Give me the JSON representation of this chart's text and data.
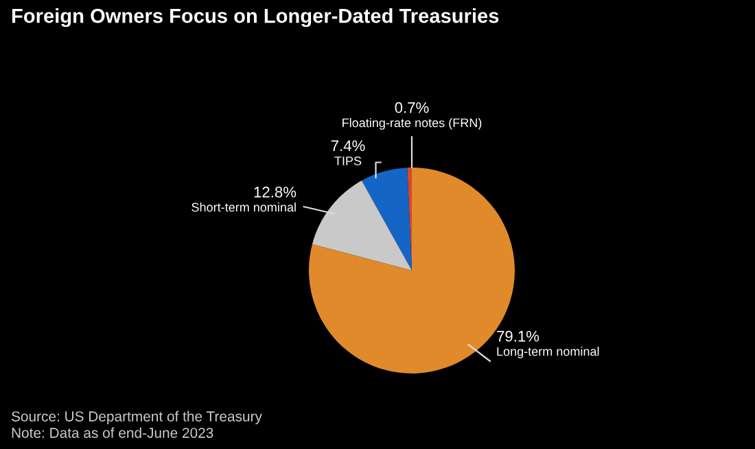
{
  "chart_data": {
    "type": "pie",
    "title": "Foreign Owners Focus on Longer-Dated Treasuries",
    "categories": [
      "Floating-rate notes (FRN)",
      "TIPS",
      "Short-term nominal",
      "Long-term nominal"
    ],
    "values": [
      0.7,
      7.4,
      12.8,
      79.1
    ],
    "value_labels": [
      "0.7%",
      "7.4%",
      "12.8%",
      "79.1%"
    ],
    "colors": [
      "#d9482b",
      "#1565c6",
      "#c9c9c9",
      "#e08a2b"
    ],
    "annotations": [
      "Source: US Department of the Treasury",
      "Note: Data as of end-June 2023"
    ],
    "legend": false
  }
}
